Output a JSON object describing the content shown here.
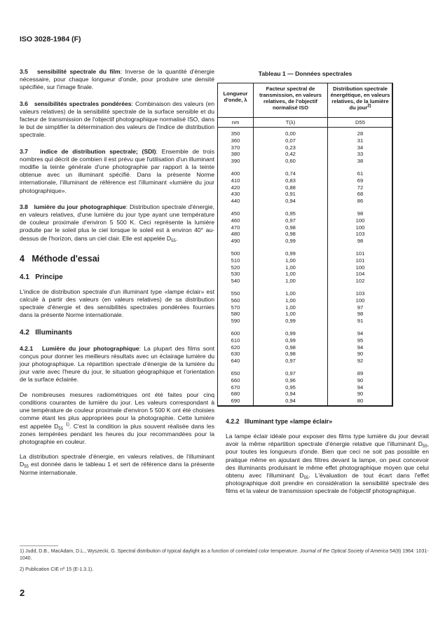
{
  "header": {
    "doc_id": "ISO 3028-1984 (F)"
  },
  "left": {
    "s35": {
      "num": "3.5",
      "term": "sensibilité spectrale du film",
      "text": "Inverse de la quantité d'énergie nécessaire, pour chaque longueur d'onde, pour produire une densité spécifiée, sur l'image finale."
    },
    "s36": {
      "num": "3.6",
      "term": "sensibilités spectrales pondérées",
      "text": "Combinaison des valeurs (en valeurs relatives) de la sensibilité spectrale de la surface sensible et du facteur de transmission de l'objectif photographique normalisé ISO, dans le but de simplifier la détermination des valeurs de l'indice de distribution spectrale."
    },
    "s37": {
      "num": "3.7",
      "term": "indice de distribution spectrale; (SDI)",
      "text": "Ensemble de trois nombres qui décrit de combien il est prévu que l'utilisation d'un illuminant modifie la teinte générale d'une photographie par rapport à la teinte obtenue avec un illuminant spécifié. Dans la présente Norme internationale, l'illuminant de référence est l'illuminant «lumière du jour photographique»."
    },
    "s38": {
      "num": "3.8",
      "term": "lumière du jour photographique",
      "text": "Distribution spectrale d'énergie, en valeurs relatives, d'une lumière du jour type ayant une température de couleur proximale d'environ 5 500 K. Ceci représente la lumière produite par le soleil plus le ciel lorsque le soleil est à environ 40° au-dessus de l'horizon, dans un ciel clair. Elle est appelée D",
      "sub": "55",
      "end": "."
    },
    "s4": {
      "num": "4",
      "title": "Méthode d'essai"
    },
    "s41": {
      "num": "4.1",
      "title": "Principe",
      "text": "L'indice de distribution spectrale d'un illuminant type «lampe éclair» est calculé à partir des valeurs (en valeurs relatives) de sa distribution spectrale d'énergie et des sensibilités spectrales pondérées fournies dans la présente Norme internationale."
    },
    "s42": {
      "num": "4.2",
      "title": "Illuminants"
    },
    "s421": {
      "num": "4.2.1",
      "term": "Lumière du jour photographique",
      "text": "La plupart des films sont conçus pour donner les meilleurs résultats avec un éclairage lumière du jour photographique. La répartition spectrale d'énergie de la lumière du jour varie avec l'heure du jour, le situation géographique et l'orientation de la surface éclairée."
    },
    "p2a": "De nombreuses mesures radiométriques ont été faites pour cinq conditions courantes de lumière du jour. Les valeurs correspondant à une température de couleur proximale d'environ 5 500 K ont été choisies comme étant les plus appropriées pour la photographie. Cette lumière est appelée D",
    "p2sub": "55",
    "p2sup": "1)",
    "p2b": ". C'est la condition la plus souvent réalisée dans les zones tempérées pendant les heures du jour recommandées pour la photographie en couleur.",
    "p3a": "La distribution spectrale d'énergie, en valeurs relatives, de l'illuminant D",
    "p3sub": "55",
    "p3b": " est donnée dans le tableau 1 et sert de référence dans la présente Norme internationale."
  },
  "table": {
    "caption": "Tableau 1 — Données spectrales",
    "headers": [
      "Longueur d'onde, λ",
      "Facteur spectral de transmission, en valeurs relatives, de l'objectif normalisé ISO",
      "Distribution spectrale énergétique, en valeurs relatives, de la lumière du jour"
    ],
    "header_sup": "2)",
    "units": [
      "nm",
      "T(λ)",
      "D55"
    ],
    "rows": [
      [
        "350",
        "0,00",
        "28"
      ],
      [
        "360",
        "0,07",
        "31"
      ],
      [
        "370",
        "0,23",
        "34"
      ],
      [
        "380",
        "0,42",
        "33"
      ],
      [
        "390",
        "0,60",
        "38"
      ],
      [
        "400",
        "0,74",
        "61"
      ],
      [
        "410",
        "0,83",
        "69"
      ],
      [
        "420",
        "0,88",
        "72"
      ],
      [
        "430",
        "0,91",
        "68"
      ],
      [
        "440",
        "0,94",
        "86"
      ],
      [
        "450",
        "0,95",
        "98"
      ],
      [
        "460",
        "0,97",
        "100"
      ],
      [
        "470",
        "0,98",
        "100"
      ],
      [
        "480",
        "0,98",
        "103"
      ],
      [
        "490",
        "0,99",
        "98"
      ],
      [
        "500",
        "0,99",
        "101"
      ],
      [
        "510",
        "1,00",
        "101"
      ],
      [
        "520",
        "1,00",
        "100"
      ],
      [
        "530",
        "1,00",
        "104"
      ],
      [
        "540",
        "1,00",
        "102"
      ],
      [
        "550",
        "1,00",
        "103"
      ],
      [
        "560",
        "1,00",
        "100"
      ],
      [
        "570",
        "1,00",
        "97"
      ],
      [
        "580",
        "1,00",
        "98"
      ],
      [
        "590",
        "0,99",
        "91"
      ],
      [
        "600",
        "0,99",
        "94"
      ],
      [
        "610",
        "0,99",
        "95"
      ],
      [
        "620",
        "0,98",
        "94"
      ],
      [
        "630",
        "0,98",
        "90"
      ],
      [
        "640",
        "0,97",
        "92"
      ],
      [
        "650",
        "0,97",
        "89"
      ],
      [
        "660",
        "0,96",
        "90"
      ],
      [
        "670",
        "0,95",
        "94"
      ],
      [
        "680",
        "0,94",
        "90"
      ],
      [
        "690",
        "0,94",
        "80"
      ]
    ]
  },
  "right": {
    "s422": {
      "num": "4.2.2",
      "title": "Illuminant type «lampe éclair»"
    },
    "pa": "La lampe éclair idéale pour exposer des films type lumière du jour devrait avoir la même répartition spectrale d'énergie relative que l'illuminant D",
    "sub1": "55",
    "pb": ", pour toutes les longueurs d'onde. Bien que ceci ne soit pas possible en pratique même en ajoutant des filtres devant la lampe, on peut concevoir des illuminants produisant le même effet photographique moyen que celui obtenu avec l'illuminant D",
    "sub2": "55",
    "pc": ". L'évaluation de tout écart dans l'effet photographique doit prendre en considération la sensibilité spectrale des films et la valeur de transmission spectrale de l'objectif photographique."
  },
  "footnotes": {
    "f1": "1)  Judd, D.B., MacAdam, D.L., Wyszecki, G. Spectral distribution of typical daylight as a function of correlated color temperature. ",
    "f1_journal": "Journal of the Optical Society of America",
    "f1_end": " 54(8) 1964: 1031-1040.",
    "f2": "2)  Publication CIE nº 15 (E-1.3.1)."
  },
  "page_number": "2"
}
